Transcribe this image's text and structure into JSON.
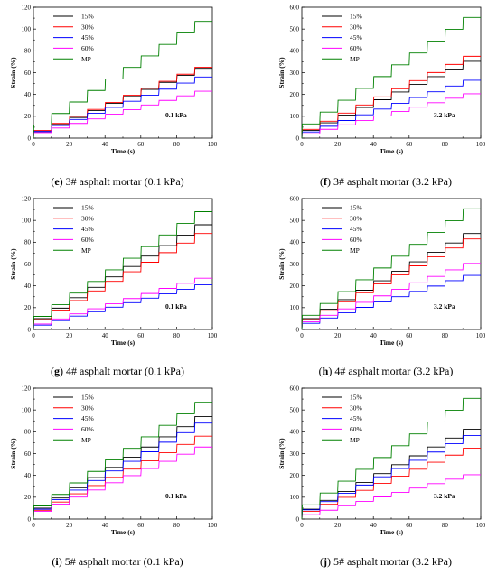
{
  "chart_data": [
    {
      "id": "e",
      "type": "line",
      "caption_id": "e",
      "caption_text": "3# asphalt mortar (0.1 kPa)",
      "annotation": "0.1 kPa",
      "xlabel": "Time (s)",
      "ylabel": "Strain (%)",
      "xlim": [
        0,
        100
      ],
      "ylim": [
        0,
        120
      ],
      "xticks": [
        "0",
        "20",
        "40",
        "60",
        "80",
        "100"
      ],
      "yticks": [
        "0",
        "20",
        "40",
        "60",
        "80",
        "100",
        "120"
      ],
      "series": [
        {
          "name": "15%",
          "color": "#000000",
          "start": 6,
          "end": 64
        },
        {
          "name": "30%",
          "color": "#ff0000",
          "start": 7,
          "end": 65
        },
        {
          "name": "45%",
          "color": "#0000ff",
          "start": 6,
          "end": 56
        },
        {
          "name": "60%",
          "color": "#ff00ff",
          "start": 5,
          "end": 43
        },
        {
          "name": "MP",
          "color": "#008000",
          "start": 12,
          "end": 107
        }
      ]
    },
    {
      "id": "f",
      "type": "line",
      "caption_id": "f",
      "caption_text": "3# asphalt mortar (3.2 kPa)",
      "annotation": "3.2 kPa",
      "xlabel": "Time (s)",
      "ylabel": "Strain (%)",
      "xlim": [
        0,
        100
      ],
      "ylim": [
        0,
        600
      ],
      "xticks": [
        "0",
        "20",
        "40",
        "60",
        "80",
        "100"
      ],
      "yticks": [
        "0",
        "100",
        "200",
        "300",
        "400",
        "500",
        "600"
      ],
      "series": [
        {
          "name": "15%",
          "color": "#000000",
          "start": 35,
          "end": 352
        },
        {
          "name": "30%",
          "color": "#ff0000",
          "start": 40,
          "end": 375
        },
        {
          "name": "45%",
          "color": "#0000ff",
          "start": 28,
          "end": 265
        },
        {
          "name": "60%",
          "color": "#ff00ff",
          "start": 20,
          "end": 203
        },
        {
          "name": "MP",
          "color": "#008000",
          "start": 65,
          "end": 553
        }
      ]
    },
    {
      "id": "g",
      "type": "line",
      "caption_id": "g",
      "caption_text": "4# asphalt mortar (0.1 kPa)",
      "annotation": "0.1 kPa",
      "xlabel": "Time (s)",
      "ylabel": "Strain (%)",
      "xlim": [
        0,
        100
      ],
      "ylim": [
        0,
        120
      ],
      "xticks": [
        "0",
        "20",
        "40",
        "60",
        "80",
        "100"
      ],
      "yticks": [
        "0",
        "20",
        "40",
        "60",
        "80",
        "100",
        "120"
      ],
      "series": [
        {
          "name": "15%",
          "color": "#000000",
          "start": 10,
          "end": 96
        },
        {
          "name": "30%",
          "color": "#ff0000",
          "start": 9,
          "end": 88
        },
        {
          "name": "45%",
          "color": "#0000ff",
          "start": 4,
          "end": 41
        },
        {
          "name": "60%",
          "color": "#ff00ff",
          "start": 5,
          "end": 47
        },
        {
          "name": "MP",
          "color": "#008000",
          "start": 12,
          "end": 108
        }
      ]
    },
    {
      "id": "h",
      "type": "line",
      "caption_id": "h",
      "caption_text": "4# asphalt mortar (3.2 kPa)",
      "annotation": "3.2 kPa",
      "xlabel": "Time (s)",
      "ylabel": "Strain (%)",
      "xlim": [
        0,
        100
      ],
      "ylim": [
        0,
        600
      ],
      "xticks": [
        "0",
        "20",
        "40",
        "60",
        "80",
        "100"
      ],
      "yticks": [
        "0",
        "100",
        "200",
        "300",
        "400",
        "500",
        "600"
      ],
      "series": [
        {
          "name": "15%",
          "color": "#000000",
          "start": 50,
          "end": 440
        },
        {
          "name": "30%",
          "color": "#ff0000",
          "start": 45,
          "end": 415
        },
        {
          "name": "45%",
          "color": "#0000ff",
          "start": 28,
          "end": 248
        },
        {
          "name": "60%",
          "color": "#ff00ff",
          "start": 35,
          "end": 303
        },
        {
          "name": "MP",
          "color": "#008000",
          "start": 65,
          "end": 553
        }
      ]
    },
    {
      "id": "i",
      "type": "line",
      "caption_id": "i",
      "caption_text": "5# asphalt mortar (0.1 kPa)",
      "annotation": "0.1 kPa",
      "xlabel": "Time (s)",
      "ylabel": "Strain (%)",
      "xlim": [
        0,
        100
      ],
      "ylim": [
        0,
        120
      ],
      "xticks": [
        "0",
        "20",
        "40",
        "60",
        "80",
        "100"
      ],
      "yticks": [
        "0",
        "20",
        "40",
        "60",
        "80",
        "100",
        "120"
      ],
      "series": [
        {
          "name": "15%",
          "color": "#000000",
          "start": 10,
          "end": 94
        },
        {
          "name": "30%",
          "color": "#ff0000",
          "start": 8,
          "end": 76
        },
        {
          "name": "45%",
          "color": "#0000ff",
          "start": 9,
          "end": 88
        },
        {
          "name": "60%",
          "color": "#ff00ff",
          "start": 7,
          "end": 66
        },
        {
          "name": "MP",
          "color": "#008000",
          "start": 12,
          "end": 107
        }
      ]
    },
    {
      "id": "j",
      "type": "line",
      "caption_id": "j",
      "caption_text": "5# asphalt mortar (3.2 kPa)",
      "annotation": "3.2 kPa",
      "xlabel": "Time (s)",
      "ylabel": "Strain (%)",
      "xlim": [
        0,
        100
      ],
      "ylim": [
        0,
        600
      ],
      "xticks": [
        "0",
        "20",
        "40",
        "60",
        "80",
        "100"
      ],
      "yticks": [
        "0",
        "100",
        "200",
        "300",
        "400",
        "500",
        "600"
      ],
      "series": [
        {
          "name": "15%",
          "color": "#000000",
          "start": 45,
          "end": 412
        },
        {
          "name": "30%",
          "color": "#ff0000",
          "start": 35,
          "end": 325
        },
        {
          "name": "45%",
          "color": "#0000ff",
          "start": 42,
          "end": 383
        },
        {
          "name": "60%",
          "color": "#ff00ff",
          "start": 20,
          "end": 203
        },
        {
          "name": "MP",
          "color": "#008000",
          "start": 65,
          "end": 553
        }
      ]
    }
  ]
}
